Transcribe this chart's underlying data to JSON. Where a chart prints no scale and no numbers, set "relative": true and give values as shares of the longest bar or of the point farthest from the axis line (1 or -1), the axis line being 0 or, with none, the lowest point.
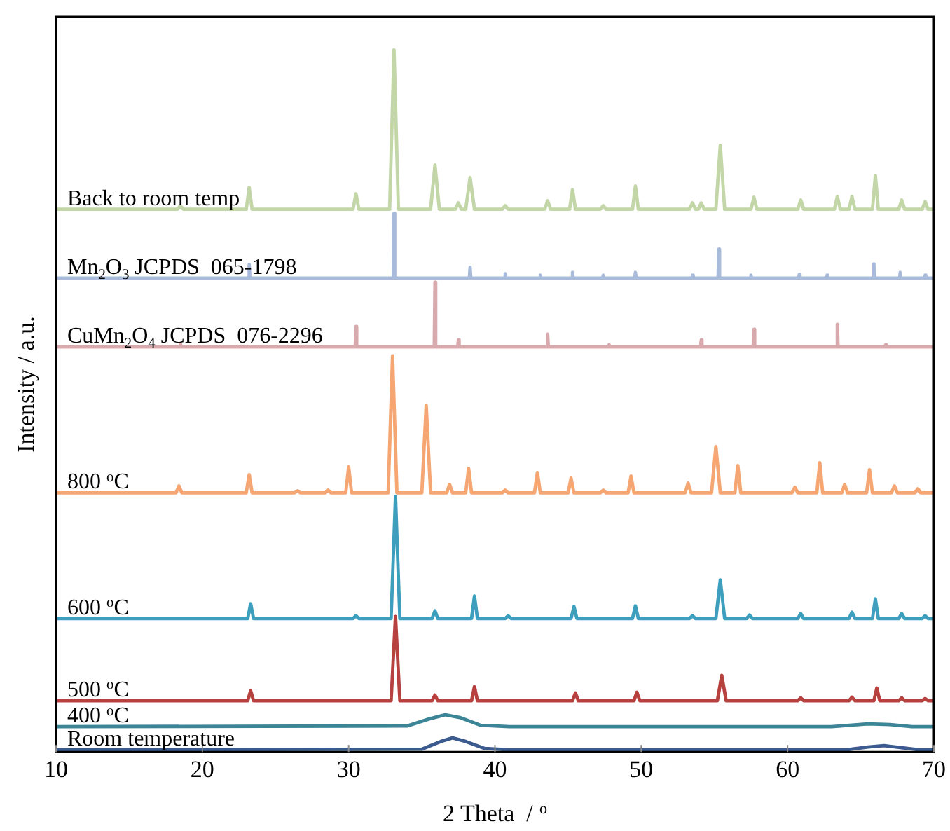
{
  "chart_data": {
    "type": "line",
    "relative": true,
    "xlabel": "2 Theta  / $^{o}$",
    "ylabel": "Intensity / a.u.",
    "xlim": [
      10,
      70
    ],
    "xticks": [
      10,
      20,
      30,
      40,
      50,
      60,
      70
    ],
    "grid": false,
    "legend": false,
    "marker": "none",
    "line_style": "solid",
    "series": [
      {
        "name": "Back to room temp",
        "color": "#c3d6a8",
        "x": [
          10,
          18.3,
          18.5,
          18.7,
          23.0,
          23.2,
          23.4,
          30.3,
          30.5,
          30.7,
          32.8,
          33.1,
          33.4,
          35.6,
          35.9,
          36.2,
          37.3,
          37.5,
          37.7,
          38.0,
          38.3,
          38.6,
          40.5,
          40.7,
          40.9,
          43.4,
          43.6,
          43.8,
          45.1,
          45.3,
          45.5,
          47.2,
          47.4,
          47.6,
          49.4,
          49.6,
          49.8,
          53.3,
          53.5,
          53.7,
          53.9,
          54.1,
          54.3,
          55.1,
          55.4,
          55.7,
          57.5,
          57.7,
          57.9,
          60.7,
          60.9,
          61.1,
          63.2,
          63.4,
          63.6,
          64.2,
          64.4,
          64.6,
          65.8,
          66.0,
          66.2,
          67.6,
          67.8,
          68.0,
          69.2,
          69.4,
          69.6,
          70
        ],
        "values": [
          0.773,
          0.773,
          0.778,
          0.773,
          0.773,
          0.804,
          0.773,
          0.773,
          0.795,
          0.773,
          0.773,
          1.0,
          0.773,
          0.773,
          0.836,
          0.773,
          0.773,
          0.782,
          0.773,
          0.773,
          0.818,
          0.773,
          0.773,
          0.778,
          0.773,
          0.773,
          0.785,
          0.773,
          0.773,
          0.801,
          0.773,
          0.773,
          0.778,
          0.773,
          0.773,
          0.806,
          0.773,
          0.773,
          0.782,
          0.773,
          0.773,
          0.782,
          0.773,
          0.773,
          0.864,
          0.773,
          0.773,
          0.79,
          0.773,
          0.773,
          0.786,
          0.773,
          0.773,
          0.791,
          0.773,
          0.773,
          0.791,
          0.773,
          0.773,
          0.821,
          0.773,
          0.773,
          0.786,
          0.773,
          0.773,
          0.784,
          0.773,
          0.773
        ]
      },
      {
        "name": "Mn$_{2}$O$_{3}$ JCPDS  065-1798",
        "color": "#a9bbdb",
        "x": [
          10,
          23.15,
          23.2,
          23.25,
          33.05,
          33.1,
          33.15,
          38.25,
          38.3,
          38.35,
          40.65,
          40.7,
          40.75,
          43.05,
          43.1,
          43.15,
          45.25,
          45.3,
          45.35,
          47.35,
          47.4,
          47.45,
          49.55,
          49.6,
          49.65,
          53.45,
          53.5,
          53.55,
          55.25,
          55.3,
          55.35,
          57.45,
          57.5,
          57.55,
          60.75,
          60.8,
          60.85,
          62.65,
          62.7,
          62.75,
          65.85,
          65.9,
          65.95,
          67.65,
          67.7,
          67.75,
          69.35,
          69.4,
          69.45,
          70
        ],
        "values": [
          0.675,
          0.675,
          0.694,
          0.675,
          0.675,
          0.767,
          0.675,
          0.675,
          0.69,
          0.675,
          0.675,
          0.681,
          0.675,
          0.675,
          0.679,
          0.675,
          0.675,
          0.683,
          0.675,
          0.675,
          0.679,
          0.675,
          0.675,
          0.683,
          0.675,
          0.675,
          0.679,
          0.675,
          0.675,
          0.716,
          0.675,
          0.675,
          0.679,
          0.675,
          0.675,
          0.68,
          0.675,
          0.675,
          0.679,
          0.675,
          0.675,
          0.695,
          0.675,
          0.675,
          0.683,
          0.675,
          0.675,
          0.679,
          0.675,
          0.675
        ]
      },
      {
        "name": "CuMn$_{2}$O$_{4}$ JCPDS  076-2296",
        "color": "#d9aaad",
        "x": [
          10,
          18.45,
          18.5,
          18.55,
          30.45,
          30.5,
          30.55,
          35.85,
          35.9,
          35.95,
          37.45,
          37.5,
          37.55,
          43.55,
          43.6,
          43.65,
          47.75,
          47.8,
          47.85,
          54.05,
          54.1,
          54.15,
          57.65,
          57.7,
          57.75,
          63.35,
          63.4,
          63.45,
          66.65,
          66.7,
          66.75,
          70
        ],
        "values": [
          0.577,
          0.577,
          0.582,
          0.577,
          0.577,
          0.606,
          0.577,
          0.577,
          0.669,
          0.577,
          0.577,
          0.587,
          0.577,
          0.577,
          0.595,
          0.577,
          0.577,
          0.58,
          0.577,
          0.577,
          0.587,
          0.577,
          0.577,
          0.602,
          0.577,
          0.577,
          0.609,
          0.577,
          0.577,
          0.58,
          0.577,
          0.577
        ]
      },
      {
        "name": "800 $^{o}$C",
        "color": "#f5a672",
        "x": [
          10,
          18.2,
          18.4,
          18.6,
          23.0,
          23.2,
          23.4,
          26.3,
          26.5,
          26.7,
          28.4,
          28.6,
          28.8,
          29.8,
          30.0,
          30.2,
          32.7,
          33.0,
          33.3,
          35.0,
          35.3,
          35.6,
          36.7,
          36.9,
          37.1,
          38.0,
          38.2,
          38.4,
          40.5,
          40.7,
          40.9,
          42.7,
          42.9,
          43.1,
          45.0,
          45.2,
          45.4,
          47.2,
          47.4,
          47.6,
          49.1,
          49.3,
          49.5,
          53.0,
          53.2,
          53.4,
          54.8,
          55.1,
          55.4,
          56.4,
          56.6,
          56.8,
          60.3,
          60.5,
          60.7,
          62.0,
          62.2,
          62.4,
          63.7,
          63.9,
          64.1,
          65.4,
          65.6,
          65.8,
          67.1,
          67.3,
          67.5,
          68.7,
          68.9,
          69.1,
          70
        ],
        "values": [
          0.369,
          0.369,
          0.379,
          0.369,
          0.369,
          0.395,
          0.369,
          0.369,
          0.372,
          0.369,
          0.369,
          0.373,
          0.369,
          0.369,
          0.406,
          0.369,
          0.369,
          0.564,
          0.369,
          0.369,
          0.494,
          0.369,
          0.369,
          0.381,
          0.369,
          0.369,
          0.404,
          0.369,
          0.369,
          0.373,
          0.369,
          0.369,
          0.398,
          0.369,
          0.369,
          0.39,
          0.369,
          0.369,
          0.373,
          0.369,
          0.369,
          0.393,
          0.369,
          0.369,
          0.383,
          0.369,
          0.369,
          0.435,
          0.369,
          0.369,
          0.408,
          0.369,
          0.369,
          0.377,
          0.369,
          0.369,
          0.412,
          0.369,
          0.369,
          0.381,
          0.369,
          0.369,
          0.402,
          0.369,
          0.369,
          0.379,
          0.369,
          0.369,
          0.375,
          0.369,
          0.369
        ]
      },
      {
        "name": "600 $^{o}$C",
        "color": "#3d9fbd",
        "x": [
          10,
          23.1,
          23.3,
          23.5,
          30.3,
          30.5,
          30.7,
          32.9,
          33.2,
          33.5,
          35.7,
          35.9,
          36.1,
          38.4,
          38.6,
          38.8,
          40.7,
          40.9,
          41.1,
          45.2,
          45.4,
          45.6,
          49.4,
          49.6,
          49.8,
          53.3,
          53.5,
          53.7,
          55.1,
          55.4,
          55.7,
          57.2,
          57.4,
          57.6,
          60.7,
          60.9,
          61.1,
          64.2,
          64.4,
          64.6,
          65.8,
          66.0,
          66.2,
          67.6,
          67.8,
          68.0,
          69.2,
          69.4,
          69.6,
          70
        ],
        "values": [
          0.19,
          0.19,
          0.211,
          0.19,
          0.19,
          0.194,
          0.19,
          0.19,
          0.364,
          0.19,
          0.19,
          0.201,
          0.19,
          0.19,
          0.222,
          0.19,
          0.19,
          0.194,
          0.19,
          0.19,
          0.207,
          0.19,
          0.19,
          0.208,
          0.19,
          0.19,
          0.194,
          0.19,
          0.19,
          0.245,
          0.19,
          0.19,
          0.195,
          0.19,
          0.19,
          0.197,
          0.19,
          0.19,
          0.199,
          0.19,
          0.19,
          0.218,
          0.19,
          0.19,
          0.197,
          0.19,
          0.19,
          0.194,
          0.19,
          0.19
        ]
      },
      {
        "name": "500 $^{o}$C",
        "color": "#b6413e",
        "x": [
          10,
          23.1,
          23.3,
          23.5,
          32.9,
          33.2,
          33.5,
          35.7,
          35.9,
          36.1,
          38.4,
          38.6,
          38.8,
          45.3,
          45.5,
          45.7,
          49.5,
          49.7,
          49.9,
          55.2,
          55.5,
          55.8,
          60.7,
          60.9,
          61.1,
          64.2,
          64.4,
          64.6,
          65.9,
          66.1,
          66.3,
          67.6,
          67.8,
          68.0,
          69.2,
          69.4,
          69.6,
          70
        ],
        "values": [
          0.073,
          0.073,
          0.087,
          0.073,
          0.073,
          0.193,
          0.073,
          0.073,
          0.081,
          0.073,
          0.073,
          0.093,
          0.073,
          0.073,
          0.084,
          0.073,
          0.073,
          0.085,
          0.073,
          0.073,
          0.109,
          0.073,
          0.073,
          0.077,
          0.073,
          0.073,
          0.078,
          0.073,
          0.073,
          0.091,
          0.073,
          0.073,
          0.077,
          0.073,
          0.073,
          0.076,
          0.073,
          0.073
        ]
      },
      {
        "name": "400 $^{o}$C",
        "color": "#3c8597",
        "x": [
          10,
          34,
          35.5,
          36.6,
          37.6,
          39,
          41,
          63,
          65.5,
          67,
          68.5,
          70
        ],
        "values": [
          0.036,
          0.037,
          0.047,
          0.053,
          0.049,
          0.038,
          0.036,
          0.036,
          0.04,
          0.039,
          0.036,
          0.036
        ]
      },
      {
        "name": "Room temperature",
        "color": "#3b5a8e",
        "x": [
          10,
          35,
          36.3,
          37.1,
          38,
          39.3,
          41,
          64,
          65.5,
          66.6,
          67.8,
          69,
          70
        ],
        "values": [
          0.003,
          0.004,
          0.015,
          0.02,
          0.015,
          0.005,
          0.003,
          0.003,
          0.007,
          0.009,
          0.006,
          0.003,
          0.003
        ]
      }
    ]
  }
}
